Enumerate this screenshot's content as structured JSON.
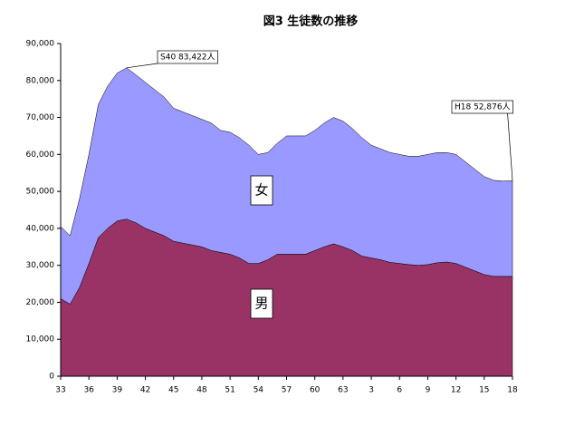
{
  "chart_data": {
    "type": "stacked_area",
    "title": "図3  生徒数の推移",
    "categories": [
      "33",
      null,
      null,
      "36",
      null,
      null,
      "39",
      null,
      null,
      "42",
      null,
      null,
      "45",
      null,
      null,
      "48",
      null,
      null,
      "51",
      null,
      null,
      "54",
      null,
      null,
      "57",
      null,
      null,
      "60",
      null,
      null,
      "63",
      null,
      null,
      "3",
      null,
      null,
      "6",
      null,
      null,
      "9",
      null,
      null,
      "12",
      null,
      null,
      "15",
      null,
      null,
      "18"
    ],
    "series": [
      {
        "name": "男",
        "color": "#993366",
        "values": [
          21000,
          19500,
          24000,
          30500,
          37500,
          40000,
          42000,
          42500,
          41500,
          40000,
          39000,
          38000,
          36500,
          36000,
          35500,
          35000,
          34000,
          33500,
          33000,
          32000,
          30500,
          30500,
          31500,
          33000,
          33000,
          33000,
          33000,
          34000,
          35000,
          35800,
          35000,
          34000,
          32500,
          32000,
          31500,
          30800,
          30500,
          30200,
          30000,
          30200,
          30700,
          30900,
          30500,
          29500,
          28500,
          27500,
          27000,
          27000,
          27000
        ]
      },
      {
        "name": "女",
        "color": "#9999ff",
        "values": [
          19500,
          18500,
          24000,
          29500,
          36000,
          38500,
          40000,
          40922,
          40000,
          39500,
          38500,
          37500,
          36000,
          35500,
          35000,
          34500,
          34500,
          33000,
          33000,
          32500,
          32000,
          29500,
          29000,
          30000,
          32000,
          32000,
          32000,
          32500,
          33500,
          34200,
          34000,
          33000,
          32000,
          30500,
          30000,
          29700,
          29500,
          29300,
          29500,
          29800,
          29800,
          29600,
          29500,
          28500,
          27500,
          26500,
          26000,
          25800,
          25876
        ]
      }
    ],
    "annotations": [
      "S40  83,422人",
      "H18  52,876人"
    ],
    "ylim": [
      0,
      90000
    ],
    "yticks": [
      0,
      {
        "value": 10000,
        "label": "10,000"
      },
      {
        "value": 20000,
        "label": "20,000"
      },
      {
        "value": 30000,
        "label": "30,000"
      },
      {
        "value": 40000,
        "label": "40,000"
      },
      {
        "value": 50000,
        "label": "50,000"
      },
      {
        "value": 60000,
        "label": "60,000"
      },
      {
        "value": 70000,
        "label": "70,000"
      },
      {
        "value": 80000,
        "label": "80,000"
      },
      {
        "value": 90000,
        "label": "90,000"
      }
    ]
  }
}
